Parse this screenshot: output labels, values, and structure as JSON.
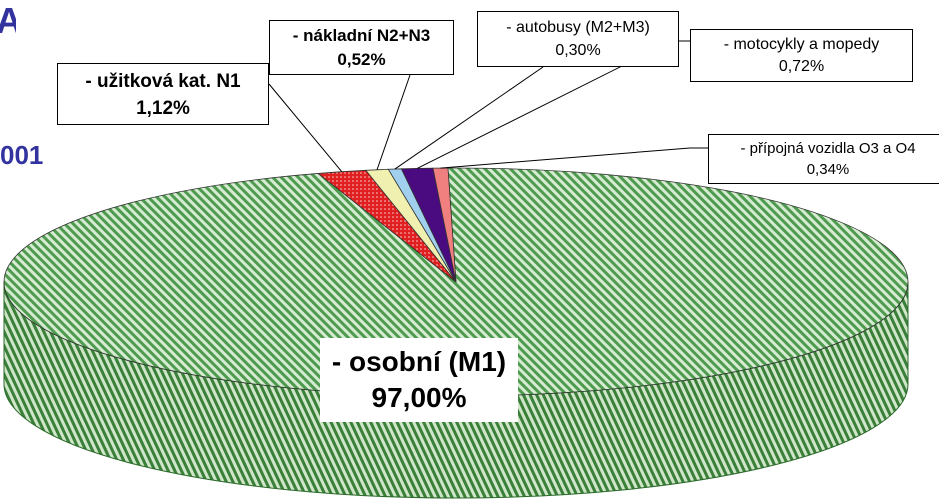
{
  "title_fragments": {
    "top_left": "A",
    "left": "001"
  },
  "chart_data": {
    "type": "pie",
    "three_d": true,
    "slices": [
      {
        "label": "- osobní (M1)",
        "value": 97.0,
        "display": "97,00%",
        "color": "#4a9a4a",
        "pattern": "diagonal-hatch"
      },
      {
        "label": "- užitková kat. N1",
        "value": 1.12,
        "display": "1,12%",
        "color": "#e02020",
        "pattern": "dots"
      },
      {
        "label": "- nákladní N2+N3",
        "value": 0.52,
        "display": "0,52%",
        "color": "#f0f0b0",
        "pattern": "none"
      },
      {
        "label": "- autobusy (M2+M3)",
        "value": 0.3,
        "display": "0,30%",
        "color": "#a0d0ee",
        "pattern": "none"
      },
      {
        "label": "- motocykly a mopedy",
        "value": 0.72,
        "display": "0,72%",
        "color": "#4a0a80",
        "pattern": "none"
      },
      {
        "label": "- přípojná vozidla O3 a O4",
        "value": 0.34,
        "display": "0,34%",
        "color": "#f08080",
        "pattern": "none"
      }
    ]
  }
}
